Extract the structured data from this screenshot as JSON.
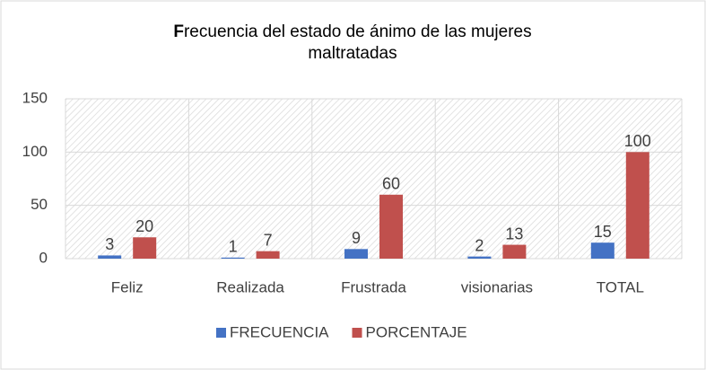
{
  "chart_data": {
    "type": "bar",
    "title": "Frecuencia del estado de ánimo de las mujeres maltratadas",
    "categories": [
      "Feliz",
      "Realizada",
      "Frustrada",
      "visionarias",
      "TOTAL"
    ],
    "series": [
      {
        "name": "FRECUENCIA",
        "color": "#4472c4",
        "values": [
          3,
          1,
          9,
          2,
          15
        ]
      },
      {
        "name": "PORCENTAJE",
        "color": "#c0504d",
        "values": [
          20,
          7,
          60,
          13,
          100
        ]
      }
    ],
    "ylim": [
      0,
      150
    ],
    "yticks": [
      0,
      50,
      100,
      150
    ],
    "grid": true,
    "legend": "bottom"
  }
}
